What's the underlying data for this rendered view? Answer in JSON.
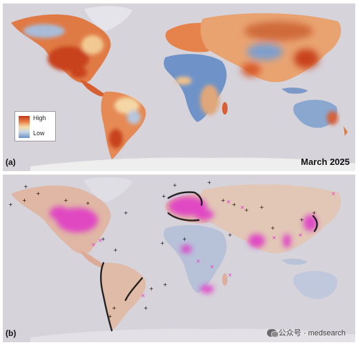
{
  "panel_a": {
    "label": "(a)",
    "date": "March 2025",
    "legend": {
      "high": "High",
      "low": "Low"
    },
    "colors": {
      "high": "#c13a1a",
      "mid": "#f6dca6",
      "low": "#6d93c6",
      "ocean": "#d6d3db"
    }
  },
  "panel_b": {
    "label": "(b)",
    "watermark": "公众号 · medsearch",
    "marker_colors": {
      "plus": "#111111",
      "cross": "#e036c8"
    }
  }
}
